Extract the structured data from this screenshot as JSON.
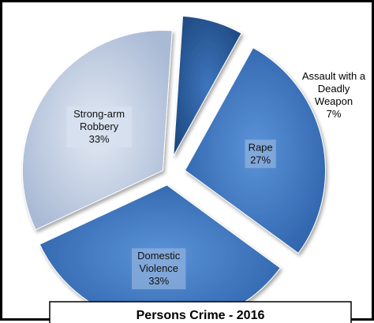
{
  "chart_data": {
    "type": "pie",
    "title": "Persons Crime - 2016",
    "exploded": true,
    "categories": [
      "Strong-arm Robbery",
      "Assault with a Deadly Weapon",
      "Rape",
      "Domestic Violence"
    ],
    "values": [
      33,
      7,
      27,
      33
    ],
    "labels": [
      [
        "Strong-arm",
        "Robbery",
        "33%"
      ],
      [
        "Assault with a",
        "Deadly",
        "Weapon",
        "7%"
      ],
      [
        "Rape",
        "27%"
      ],
      [
        "Domestic",
        "Violence",
        "33%"
      ]
    ],
    "colors": {
      "slice_light": "#c7d3e6",
      "slice_blue": "#3f7ac6",
      "slice_dark": "#2b5e9e",
      "label_box": "#ffffff"
    }
  }
}
